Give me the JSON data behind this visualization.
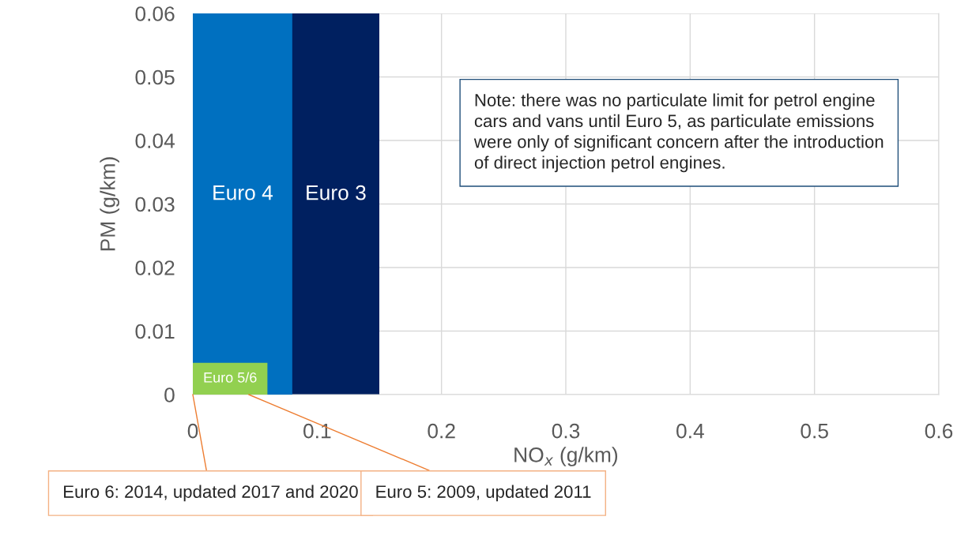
{
  "chart_data": {
    "type": "area",
    "xlabel": "NO$_{x}$ (g/km)",
    "ylabel": "PM (g/km)",
    "series": [
      {
        "name": "Euro 3",
        "color": "#002060",
        "x": [
          0,
          0.15
        ],
        "values": [
          0.06,
          0.06
        ]
      },
      {
        "name": "Euro 4",
        "color": "#0070c0",
        "x": [
          0,
          0.08
        ],
        "values": [
          0.06,
          0.06
        ]
      },
      {
        "name": "Euro 5/6",
        "color": "#92d050",
        "x": [
          0,
          0.06
        ],
        "values": [
          0.005,
          0.005
        ]
      }
    ],
    "xlim": [
      0,
      0.6
    ],
    "xticks": [
      0,
      0.1,
      0.2,
      0.3,
      0.4,
      0.5,
      0.6
    ],
    "ylim": [
      0,
      0.06
    ],
    "yticks": [
      0,
      0.01,
      0.02,
      0.03,
      0.04,
      0.05,
      0.06
    ],
    "grid": true,
    "legend": false,
    "annotations": [
      "Note: there was no particulate limit for petrol engine cars and vans until Euro 5, as particulate emissions were only of significant concern after the introduction of direct injection petrol engines.",
      {
        "text": "Euro 6: 2014, updated 2017 and 2020",
        "x": 0,
        "y": 0
      },
      {
        "text": "Euro 5: 2009, updated 2011",
        "x": 0.045,
        "y": 0
      }
    ]
  }
}
